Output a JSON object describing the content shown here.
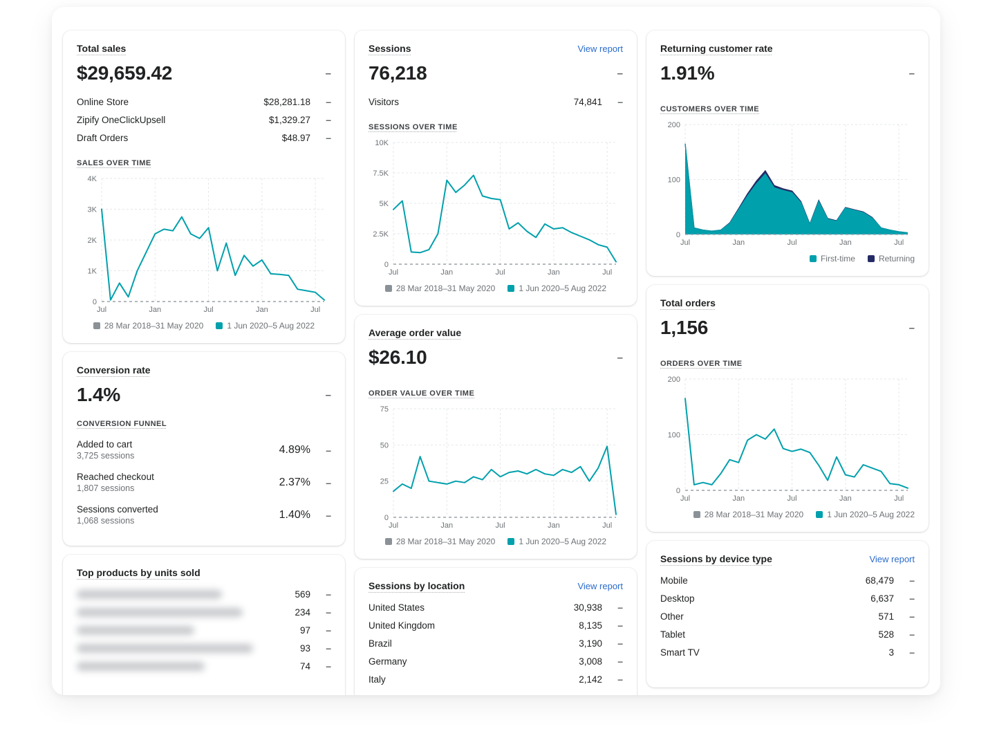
{
  "colors": {
    "teal": "#00a0ac",
    "navy": "#242a64",
    "gray_series": "#8a9297",
    "link": "#2a6bcb",
    "baseline": "#9aa0a6"
  },
  "delta": "–",
  "view_report": "View report",
  "legend": {
    "period1": "28 Mar 2018–31 May 2020",
    "period2": "1 Jun 2020–5 Aug 2022",
    "first_time": "First-time",
    "returning": "Returning"
  },
  "cards": {
    "total_sales": {
      "title": "Total sales",
      "value": "$29,659.42",
      "section": "SALES OVER TIME",
      "rows": [
        {
          "label": "Online Store",
          "value": "$28,281.18"
        },
        {
          "label": "Zipify OneClickUpsell",
          "value": "$1,329.27"
        },
        {
          "label": "Draft Orders",
          "value": "$48.97"
        }
      ]
    },
    "sessions": {
      "title": "Sessions",
      "value": "76,218",
      "section": "SESSIONS OVER TIME",
      "rows": [
        {
          "label": "Visitors",
          "value": "74,841"
        }
      ]
    },
    "returning_rate": {
      "title": "Returning customer rate",
      "value": "1.91%",
      "section": "CUSTOMERS OVER TIME"
    },
    "conversion": {
      "title": "Conversion rate",
      "value": "1.4%",
      "section": "CONVERSION FUNNEL",
      "rows": [
        {
          "label": "Added to cart",
          "sub": "3,725 sessions",
          "value": "4.89%"
        },
        {
          "label": "Reached checkout",
          "sub": "1,807 sessions",
          "value": "2.37%"
        },
        {
          "label": "Sessions converted",
          "sub": "1,068 sessions",
          "value": "1.40%"
        }
      ]
    },
    "aov": {
      "title": "Average order value",
      "value": "$26.10",
      "section": "ORDER VALUE OVER TIME"
    },
    "orders": {
      "title": "Total orders",
      "value": "1,156",
      "section": "ORDERS OVER TIME"
    },
    "top_products": {
      "title": "Top products by units sold",
      "rows": [
        {
          "value": "569"
        },
        {
          "value": "234"
        },
        {
          "value": "97"
        },
        {
          "value": "93"
        },
        {
          "value": "74"
        }
      ]
    },
    "locations": {
      "title": "Sessions by location",
      "rows": [
        {
          "label": "United States",
          "value": "30,938"
        },
        {
          "label": "United Kingdom",
          "value": "8,135"
        },
        {
          "label": "Brazil",
          "value": "3,190"
        },
        {
          "label": "Germany",
          "value": "3,008"
        },
        {
          "label": "Italy",
          "value": "2,142"
        }
      ]
    },
    "devices": {
      "title": "Sessions by device type",
      "rows": [
        {
          "label": "Mobile",
          "value": "68,479"
        },
        {
          "label": "Desktop",
          "value": "6,637"
        },
        {
          "label": "Other",
          "value": "571"
        },
        {
          "label": "Tablet",
          "value": "528"
        },
        {
          "label": "Smart TV",
          "value": "3"
        }
      ]
    }
  },
  "chart_data": [
    {
      "id": "sales_over_time",
      "type": "line",
      "title": "Sales over time (USD, thousands)",
      "x_ticks": [
        "Jul",
        "Jan",
        "Jul",
        "Jan",
        "Jul"
      ],
      "x_tick_pos": [
        0,
        0.24,
        0.48,
        0.72,
        0.96
      ],
      "y_ticks": [
        "0",
        "1K",
        "2K",
        "3K",
        "4K"
      ],
      "y_max": 4,
      "series": [
        {
          "name": "28 Mar 2018–31 May 2020",
          "color": "#9aa0a6",
          "flat": true,
          "value": 0
        },
        {
          "name": "1 Jun 2020–5 Aug 2022",
          "color": "#00a0ac",
          "values": [
            3.0,
            0.05,
            0.6,
            0.15,
            1.0,
            1.6,
            2.2,
            2.35,
            2.3,
            2.75,
            2.2,
            2.05,
            2.4,
            1.0,
            1.9,
            0.85,
            1.5,
            1.15,
            1.35,
            0.9,
            0.88,
            0.85,
            0.4,
            0.35,
            0.3,
            0.05
          ]
        }
      ]
    },
    {
      "id": "sessions_over_time",
      "type": "line",
      "title": "Sessions over time (thousands)",
      "x_ticks": [
        "Jul",
        "Jan",
        "Jul",
        "Jan",
        "Jul"
      ],
      "x_tick_pos": [
        0,
        0.24,
        0.48,
        0.72,
        0.96
      ],
      "y_ticks": [
        "0",
        "2.5K",
        "5K",
        "7.5K",
        "10K"
      ],
      "y_max": 10,
      "series": [
        {
          "name": "28 Mar 2018–31 May 2020",
          "color": "#9aa0a6",
          "flat": true,
          "value": 0
        },
        {
          "name": "1 Jun 2020–5 Aug 2022",
          "color": "#00a0ac",
          "values": [
            4.5,
            5.2,
            1.0,
            0.95,
            1.2,
            2.5,
            6.9,
            5.9,
            6.5,
            7.3,
            5.6,
            5.4,
            5.3,
            2.9,
            3.4,
            2.7,
            2.2,
            3.3,
            2.9,
            3.0,
            2.6,
            2.3,
            2.0,
            1.6,
            1.4,
            0.2
          ]
        }
      ]
    },
    {
      "id": "customers_over_time",
      "type": "area-stacked",
      "title": "Customers over time",
      "x_ticks": [
        "Jul",
        "Jan",
        "Jul",
        "Jan",
        "Jul"
      ],
      "x_tick_pos": [
        0,
        0.24,
        0.48,
        0.72,
        0.96
      ],
      "y_ticks": [
        "0",
        "100",
        "200"
      ],
      "y_max": 200,
      "series": [
        {
          "name": "First-time",
          "color": "#00a0ac",
          "values": [
            165,
            12,
            8,
            6,
            8,
            20,
            45,
            70,
            92,
            110,
            85,
            80,
            76,
            58,
            18,
            60,
            28,
            24,
            48,
            44,
            40,
            30,
            12,
            8,
            5,
            3
          ]
        },
        {
          "name": "Returning",
          "color": "#242a64",
          "values": [
            0,
            0,
            0,
            0,
            0,
            1,
            2,
            4,
            5,
            6,
            4,
            3,
            3,
            2,
            1,
            2,
            1,
            1,
            1,
            1,
            1,
            1,
            0,
            0,
            0,
            0
          ]
        }
      ]
    },
    {
      "id": "order_value_over_time",
      "type": "line",
      "title": "Order value over time (USD)",
      "x_ticks": [
        "Jul",
        "Jan",
        "Jul",
        "Jan",
        "Jul"
      ],
      "x_tick_pos": [
        0,
        0.24,
        0.48,
        0.72,
        0.96
      ],
      "y_ticks": [
        "0",
        "25",
        "50",
        "75"
      ],
      "y_max": 75,
      "series": [
        {
          "name": "28 Mar 2018–31 May 2020",
          "color": "#9aa0a6",
          "flat": true,
          "value": 0
        },
        {
          "name": "1 Jun 2020–5 Aug 2022",
          "color": "#00a0ac",
          "values": [
            18,
            23,
            20,
            42,
            25,
            24,
            23,
            25,
            24,
            28,
            26,
            33,
            28,
            31,
            32,
            30,
            33,
            30,
            29,
            33,
            31,
            35,
            25,
            34,
            49,
            2
          ]
        }
      ]
    },
    {
      "id": "orders_over_time",
      "type": "line",
      "title": "Orders over time",
      "x_ticks": [
        "Jul",
        "Jan",
        "Jul",
        "Jan",
        "Jul"
      ],
      "x_tick_pos": [
        0,
        0.24,
        0.48,
        0.72,
        0.96
      ],
      "y_ticks": [
        "0",
        "100",
        "200"
      ],
      "y_max": 200,
      "series": [
        {
          "name": "28 Mar 2018–31 May 2020",
          "color": "#9aa0a6",
          "flat": true,
          "value": 0
        },
        {
          "name": "1 Jun 2020–5 Aug 2022",
          "color": "#00a0ac",
          "values": [
            165,
            10,
            14,
            10,
            30,
            55,
            50,
            90,
            100,
            92,
            110,
            75,
            70,
            74,
            68,
            45,
            18,
            60,
            28,
            24,
            46,
            40,
            34,
            12,
            10,
            4
          ]
        }
      ]
    }
  ]
}
